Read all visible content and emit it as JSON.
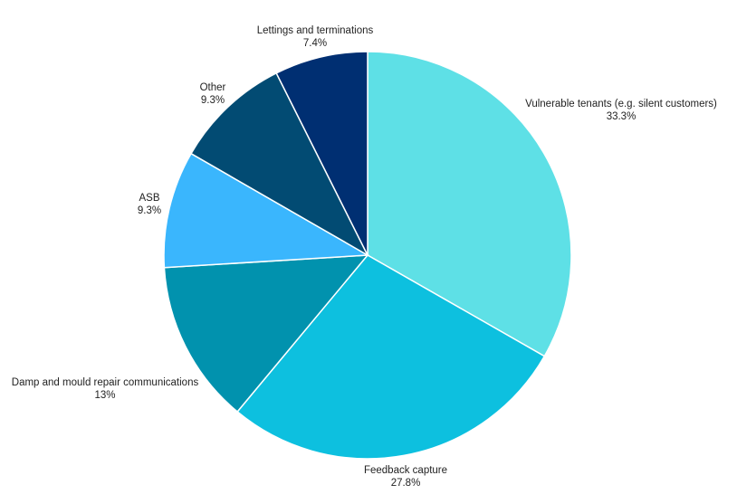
{
  "chart_data": {
    "type": "pie",
    "title": "",
    "slices": [
      {
        "label": "Vulnerable tenants (e.g. silent customers)",
        "value": 33.3,
        "value_label": "33.3%",
        "color": "#5ee0e6"
      },
      {
        "label": "Feedback capture",
        "value": 27.8,
        "value_label": "27.8%",
        "color": "#0dc0df"
      },
      {
        "label": "Damp and mould repair communications",
        "value": 13.0,
        "value_label": "13%",
        "color": "#0192ae"
      },
      {
        "label": "ASB",
        "value": 9.3,
        "value_label": "9.3%",
        "color": "#3ab6fd"
      },
      {
        "label": "Other",
        "value": 9.3,
        "value_label": "9.3%",
        "color": "#024b73"
      },
      {
        "label": "Lettings and terminations",
        "value": 7.4,
        "value_label": "7.4%",
        "color": "#002f72"
      }
    ],
    "start": "12 o'clock",
    "direction": "clockwise",
    "legend": "none"
  }
}
